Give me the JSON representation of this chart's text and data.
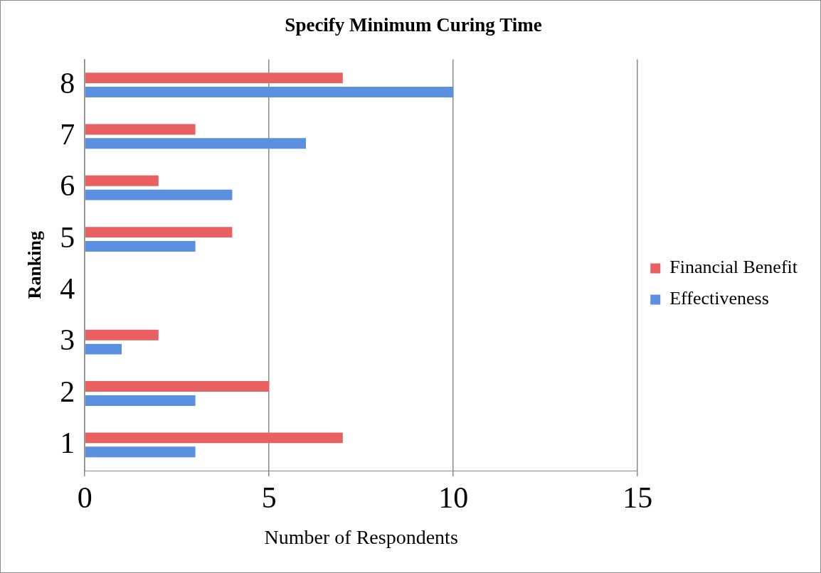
{
  "chart_data": {
    "type": "bar",
    "orientation": "horizontal",
    "title": "Specify Minimum Curing Time",
    "xlabel": "Number of Respondents",
    "ylabel": "Ranking",
    "categories": [
      "8",
      "7",
      "6",
      "5",
      "4",
      "3",
      "2",
      "1"
    ],
    "series": [
      {
        "name": "Financial Benefit",
        "color": "#e8605f",
        "values": [
          7,
          3,
          2,
          4,
          0,
          2,
          5,
          7
        ]
      },
      {
        "name": "Effectiveness",
        "color": "#5b8fe0",
        "values": [
          10,
          6,
          4,
          3,
          0,
          1,
          3,
          3
        ]
      }
    ],
    "xlim": [
      0,
      15
    ],
    "xticks": [
      0,
      5,
      10,
      15
    ],
    "grid": "x",
    "legend": "right"
  }
}
